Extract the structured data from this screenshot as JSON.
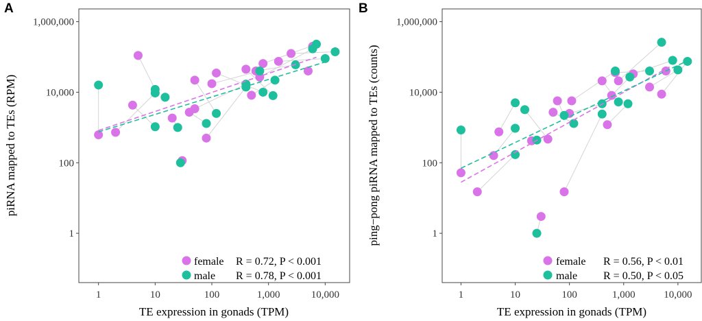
{
  "colors": {
    "female": "#d974e8",
    "male": "#1dbf9c",
    "connector": "#d4d4d4",
    "axis": "#444444"
  },
  "chart_data": [
    {
      "type": "scatter",
      "panel_label": "A",
      "xlabel": "TE expression in gonads (TPM)",
      "ylabel": "piRNA mapped to TEs (RPM)",
      "x_scale": "log10",
      "y_scale": "log10",
      "xlim": [
        0.45,
        27000
      ],
      "ylim": [
        0.04,
        2300000
      ],
      "x_ticks": [
        {
          "v": 1,
          "label": "1"
        },
        {
          "v": 10,
          "label": "10"
        },
        {
          "v": 100,
          "label": "100"
        },
        {
          "v": 1000,
          "label": "1,000"
        },
        {
          "v": 10000,
          "label": "10,000"
        }
      ],
      "y_ticks": [
        {
          "v": 1,
          "label": "1"
        },
        {
          "v": 100,
          "label": "100"
        },
        {
          "v": 10000,
          "label": "10,000"
        },
        {
          "v": 1000000,
          "label": "1,000,000"
        }
      ],
      "legend": [
        {
          "series": "female",
          "label": "female",
          "stat": "R = 0.72, P < 0.001"
        },
        {
          "series": "male",
          "label": "male",
          "stat": "R = 0.78, P < 0.001"
        }
      ],
      "series": [
        {
          "name": "female",
          "points": [
            [
              1,
              620
            ],
            [
              2,
              730
            ],
            [
              4,
              4300
            ],
            [
              5,
              110000
            ],
            [
              20,
              1850
            ],
            [
              30,
              115
            ],
            [
              40,
              2700
            ],
            [
              50,
              22000
            ],
            [
              50,
              3400
            ],
            [
              80,
              500
            ],
            [
              100,
              17500
            ],
            [
              120,
              35000
            ],
            [
              400,
              45000
            ],
            [
              500,
              8200
            ],
            [
              600,
              40000
            ],
            [
              700,
              27000
            ],
            [
              800,
              65000
            ],
            [
              1500,
              75000
            ],
            [
              2500,
              125000
            ],
            [
              5000,
              40000
            ],
            [
              6000,
              200000
            ]
          ],
          "fit": [
            [
              1,
              820
            ],
            [
              7000,
              98000
            ]
          ]
        },
        {
          "name": "male",
          "points": [
            [
              1,
              16000
            ],
            [
              10,
              12000
            ],
            [
              10,
              9500
            ],
            [
              10,
              1050
            ],
            [
              15,
              7200
            ],
            [
              25,
              1000
            ],
            [
              28,
              100
            ],
            [
              80,
              1300
            ],
            [
              120,
              2500
            ],
            [
              400,
              17000
            ],
            [
              400,
              14000
            ],
            [
              700,
              40000
            ],
            [
              800,
              10000
            ],
            [
              1200,
              8000
            ],
            [
              1300,
              22000
            ],
            [
              3000,
              60000
            ],
            [
              6000,
              170000
            ],
            [
              7000,
              230000
            ],
            [
              10000,
              90000
            ],
            [
              15000,
              140000
            ]
          ],
          "fit": [
            [
              1,
              750
            ],
            [
              10000,
              72000
            ]
          ]
        }
      ],
      "pairs": [
        [
          0,
          0
        ],
        [
          1,
          2
        ],
        [
          2,
          3
        ],
        [
          3,
          1
        ],
        [
          4,
          5
        ],
        [
          5,
          6
        ],
        [
          6,
          7
        ],
        [
          7,
          8
        ],
        [
          8,
          9
        ],
        [
          9,
          10
        ],
        [
          10,
          11
        ],
        [
          11,
          12
        ],
        [
          12,
          13
        ],
        [
          13,
          14
        ],
        [
          14,
          15
        ],
        [
          15,
          16
        ],
        [
          16,
          17
        ],
        [
          17,
          18
        ],
        [
          18,
          19
        ]
      ]
    },
    {
      "type": "scatter",
      "panel_label": "B",
      "xlabel": "TE expression in gonads (TPM)",
      "ylabel": "ping−pong piRNA mapped to TEs (counts)",
      "x_scale": "log10",
      "y_scale": "log10",
      "xlim": [
        0.45,
        27000
      ],
      "ylim": [
        0.04,
        2300000
      ],
      "x_ticks": [
        {
          "v": 1,
          "label": "1"
        },
        {
          "v": 10,
          "label": "10"
        },
        {
          "v": 100,
          "label": "100"
        },
        {
          "v": 1000,
          "label": "1,000"
        },
        {
          "v": 10000,
          "label": "10,000"
        }
      ],
      "y_ticks": [
        {
          "v": 1,
          "label": "1"
        },
        {
          "v": 100,
          "label": "100"
        },
        {
          "v": 10000,
          "label": "10,000"
        },
        {
          "v": 1000000,
          "label": "1,000,000"
        }
      ],
      "legend": [
        {
          "series": "female",
          "label": "female",
          "stat": "R = 0.56, P < 0.01"
        },
        {
          "series": "male",
          "label": "male",
          "stat": "R = 0.50, P < 0.05"
        }
      ],
      "series": [
        {
          "name": "female",
          "points": [
            [
              1,
              52
            ],
            [
              2,
              15
            ],
            [
              4,
              160
            ],
            [
              5,
              750
            ],
            [
              20,
              420
            ],
            [
              30,
              3
            ],
            [
              40,
              470
            ],
            [
              50,
              2700
            ],
            [
              60,
              5700
            ],
            [
              80,
              15
            ],
            [
              100,
              2500
            ],
            [
              110,
              5700
            ],
            [
              400,
              21000
            ],
            [
              500,
              1200
            ],
            [
              600,
              8100
            ],
            [
              700,
              36000
            ],
            [
              800,
              21000
            ],
            [
              1500,
              33000
            ],
            [
              3000,
              14000
            ],
            [
              5000,
              8800
            ],
            [
              6000,
              40000
            ]
          ],
          "fit": [
            [
              1,
              28
            ],
            [
              7000,
              52000
            ]
          ]
        },
        {
          "name": "male",
          "points": [
            [
              1,
              850
            ],
            [
              10,
              5000
            ],
            [
              10,
              950
            ],
            [
              10,
              170
            ],
            [
              15,
              3200
            ],
            [
              25,
              440
            ],
            [
              25,
              1
            ],
            [
              80,
              2200
            ],
            [
              120,
              1300
            ],
            [
              400,
              2400
            ],
            [
              400,
              4700
            ],
            [
              700,
              40000
            ],
            [
              800,
              5300
            ],
            [
              1200,
              4700
            ],
            [
              1300,
              27000
            ],
            [
              3000,
              40000
            ],
            [
              5000,
              260000
            ],
            [
              8000,
              80000
            ],
            [
              10000,
              43000
            ],
            [
              15000,
              75000
            ]
          ],
          "fit": [
            [
              1,
              70
            ],
            [
              15000,
              78000
            ]
          ]
        }
      ],
      "pairs": [
        [
          0,
          0
        ],
        [
          1,
          3
        ],
        [
          2,
          2
        ],
        [
          3,
          1
        ],
        [
          4,
          5
        ],
        [
          5,
          6
        ],
        [
          6,
          4
        ],
        [
          7,
          8
        ],
        [
          8,
          7
        ],
        [
          9,
          9
        ],
        [
          10,
          10
        ],
        [
          11,
          11
        ],
        [
          12,
          12
        ],
        [
          13,
          13
        ],
        [
          14,
          14
        ],
        [
          15,
          15
        ],
        [
          16,
          16
        ],
        [
          17,
          17
        ],
        [
          18,
          18
        ],
        [
          19,
          19
        ]
      ]
    }
  ]
}
